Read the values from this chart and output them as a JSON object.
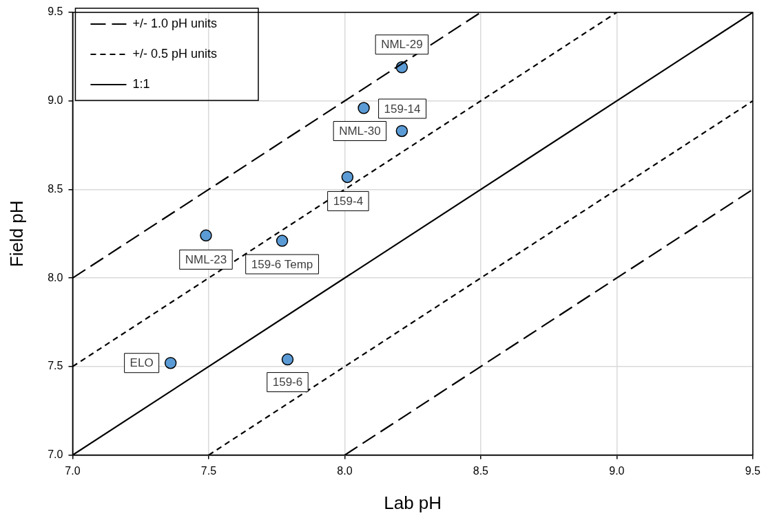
{
  "chart_data": {
    "type": "scatter",
    "xlabel": "Lab pH",
    "ylabel": "Field pH",
    "xlim": [
      7.0,
      9.5
    ],
    "ylim": [
      7.0,
      9.5
    ],
    "xticks": [
      {
        "value": 7,
        "label": "7.0"
      },
      {
        "value": 7.5,
        "label": "7.5"
      },
      {
        "value": 8,
        "label": "8.0"
      },
      {
        "value": 8.5,
        "label": "8.5"
      },
      {
        "value": 9,
        "label": "9.0"
      },
      {
        "value": 9.5,
        "label": "9.5"
      }
    ],
    "yticks": [
      {
        "value": 7,
        "label": "7.0"
      },
      {
        "value": 7.5,
        "label": "7.5"
      },
      {
        "value": 8,
        "label": "8.0"
      },
      {
        "value": 8.5,
        "label": "8.5"
      },
      {
        "value": 9,
        "label": "9.0"
      },
      {
        "value": 9.5,
        "label": "9.5"
      }
    ],
    "grid": true,
    "legend": "top left",
    "marker": "circle",
    "series": [
      {
        "type": "line",
        "name": "+/- 1.0 pH units",
        "color": "#000000",
        "line_style": "dashed",
        "marker": "none",
        "x": [
          7.0,
          8.5
        ],
        "values": [
          8.0,
          9.5
        ]
      },
      {
        "type": "line",
        "color": "#000000",
        "line_style": "dashed",
        "marker": "none",
        "x": [
          8.0,
          9.5
        ],
        "values": [
          7.0,
          8.5
        ]
      },
      {
        "type": "line",
        "name": "+/- 0.5 pH units",
        "color": "#000000",
        "line_style": "dotted",
        "marker": "none",
        "x": [
          7.0,
          9.0
        ],
        "values": [
          7.5,
          9.5
        ]
      },
      {
        "type": "line",
        "color": "#000000",
        "line_style": "dotted",
        "marker": "none",
        "x": [
          7.5,
          9.5
        ],
        "values": [
          7.0,
          9.0
        ]
      },
      {
        "type": "line",
        "name": "1:1",
        "color": "#000000",
        "line_style": "solid",
        "marker": "none",
        "x": [
          7.0,
          9.5
        ],
        "values": [
          7.0,
          9.5
        ]
      },
      {
        "color": "#5b9bd5",
        "x": [
          8.21,
          8.07,
          8.21,
          8.01,
          7.49,
          7.77,
          7.36,
          7.79
        ],
        "values": [
          9.19,
          8.96,
          8.83,
          8.57,
          8.24,
          8.21,
          7.52,
          7.54
        ]
      }
    ],
    "annotations": [
      {
        "text": "NML-29",
        "x": 8.21,
        "y": 9.19
      },
      {
        "text": "159-14",
        "x": 8.07,
        "y": 8.96
      },
      {
        "text": "NML-30",
        "x": 8.21,
        "y": 8.83
      },
      {
        "text": "159-4",
        "x": 8.01,
        "y": 8.57
      },
      {
        "text": "NML-23",
        "x": 7.49,
        "y": 8.24
      },
      {
        "text": "159-6 Temp",
        "x": 7.77,
        "y": 8.21
      },
      {
        "text": "ELO",
        "x": 7.36,
        "y": 7.52
      },
      {
        "text": "159-6",
        "x": 7.79,
        "y": 7.54
      }
    ]
  }
}
